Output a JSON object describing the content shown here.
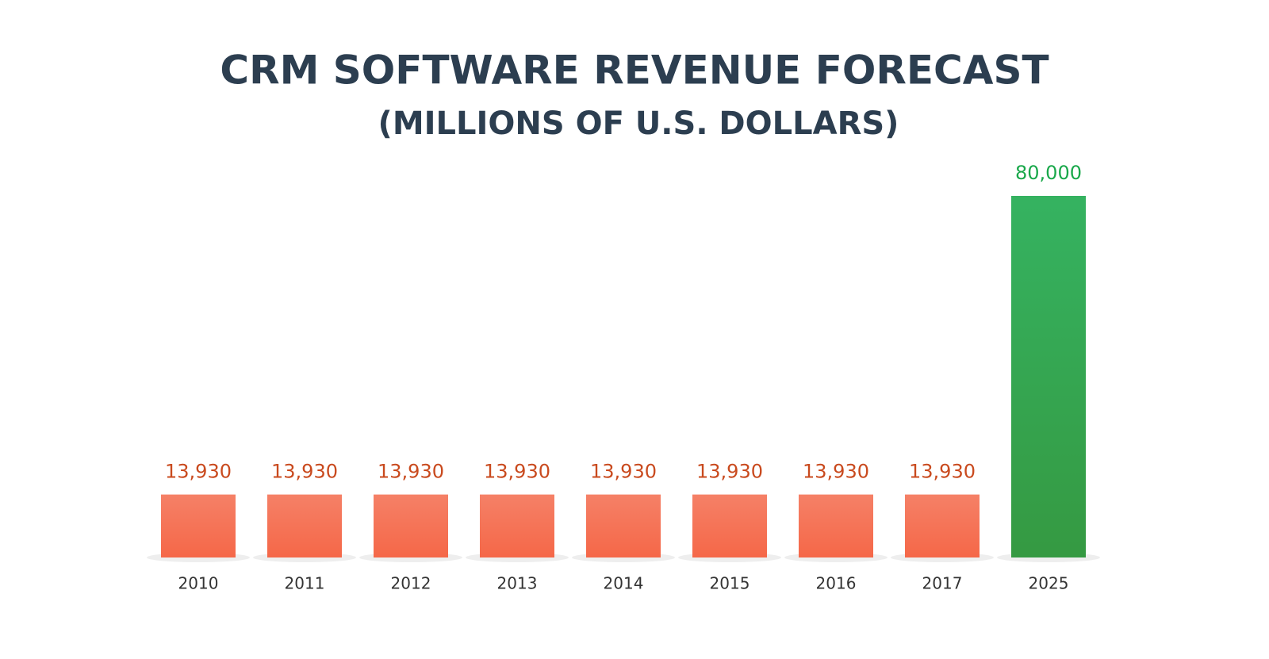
{
  "chart_data": {
    "type": "bar",
    "title": "CRM SOFTWARE REVENUE FORECAST",
    "subtitle": "(MILLIONS OF U.S. DOLLARS)",
    "categories": [
      "2010",
      "2011",
      "2012",
      "2013",
      "2014",
      "2015",
      "2016",
      "2017",
      "2025"
    ],
    "values": [
      13930,
      13930,
      13930,
      13930,
      13930,
      13930,
      13930,
      13930,
      80000
    ],
    "value_labels": [
      "13,930",
      "13,930",
      "13,930",
      "13,930",
      "13,930",
      "13,930",
      "13,930",
      "13,930",
      "80,000"
    ],
    "colors": [
      "#f46f52",
      "#f46f52",
      "#f46f52",
      "#f46f52",
      "#f46f52",
      "#f46f52",
      "#f46f52",
      "#f46f52",
      "#1aa84b"
    ],
    "label_colors": [
      "#c94a1e",
      "#c94a1e",
      "#c94a1e",
      "#c94a1e",
      "#c94a1e",
      "#c94a1e",
      "#c94a1e",
      "#c94a1e",
      "#1aa84b"
    ]
  }
}
